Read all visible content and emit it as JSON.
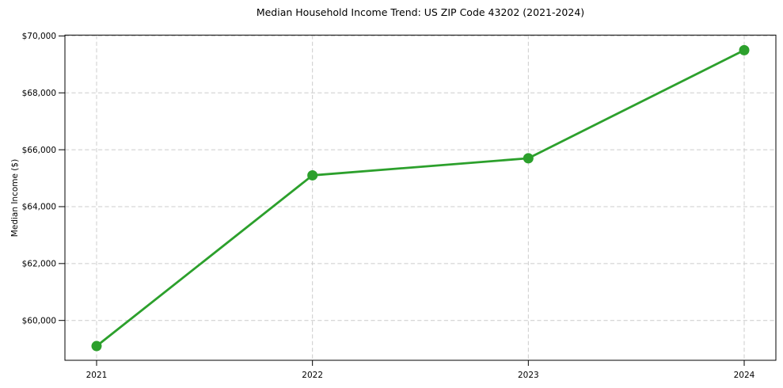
{
  "chart_data": {
    "type": "line",
    "title": "Median Household Income Trend: US ZIP Code 43202 (2021-2024)",
    "xlabel": "",
    "ylabel": "Median Income ($)",
    "categories": [
      "2021",
      "2022",
      "2023",
      "2024"
    ],
    "values": [
      59100,
      65100,
      65700,
      69500
    ],
    "ylim": [
      58600,
      70030
    ],
    "yticks": [
      60000,
      62000,
      64000,
      66000,
      68000,
      70000
    ],
    "ytick_labels": [
      "$60,000",
      "$62,000",
      "$64,000",
      "$66,000",
      "$68,000",
      "$70,000"
    ],
    "grid": true,
    "grid_style": "dashed",
    "legend": "none",
    "marker": "circle"
  },
  "colors": {
    "line": "#2ca02c",
    "marker": "#2ca02c",
    "grid": "#cccccc",
    "axis": "#000000",
    "text": "#000000",
    "background": "#ffffff"
  }
}
